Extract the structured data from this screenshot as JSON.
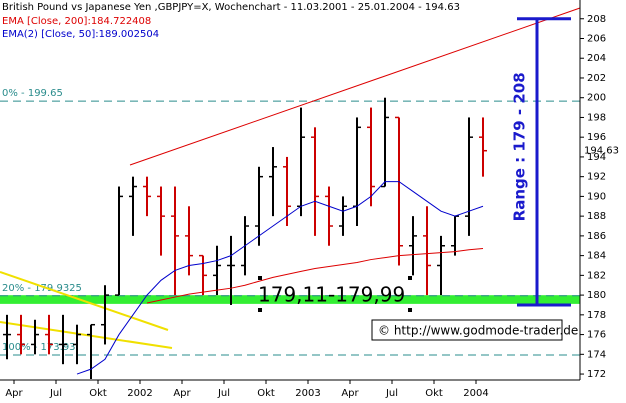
{
  "chart_data": {
    "type": "ohlc",
    "title": "British Pound vs Japanese Yen ,GBPJPY=X, Wochenchart - 11.03.2001 - 25.01.2004 - 194.63",
    "categories": [
      null,
      "Apr",
      null,
      null,
      "Jul",
      null,
      null,
      "Okt",
      null,
      null,
      "2002",
      null,
      null,
      "Apr",
      null,
      null,
      "Jul",
      null,
      null,
      "Okt",
      null,
      null,
      "2003",
      null,
      null,
      "Apr",
      null,
      null,
      "Jul",
      null,
      null,
      "Okt",
      null,
      null,
      "2004"
    ],
    "high": [
      178,
      178,
      177.5,
      178,
      178,
      177,
      177,
      181,
      191,
      192,
      192,
      191,
      191,
      189,
      184,
      185,
      186,
      188,
      193,
      195,
      194,
      199,
      197,
      191,
      190,
      198,
      199,
      200,
      198,
      188,
      189,
      186,
      188,
      198,
      198
    ],
    "low": [
      173.5,
      174,
      174,
      174,
      173,
      173,
      171.5,
      175,
      180,
      186,
      188,
      184,
      180,
      182,
      180,
      180,
      179,
      182,
      185,
      188,
      187,
      188,
      186,
      185,
      186,
      187,
      189,
      191,
      183,
      182,
      180,
      180,
      184,
      186,
      192
    ],
    "open": [
      176,
      176,
      175,
      176,
      175,
      175,
      176,
      177,
      180,
      190,
      191,
      190,
      188,
      186,
      184,
      182,
      183,
      183,
      187,
      192,
      193,
      189,
      196,
      190,
      187,
      189,
      197,
      191,
      198,
      185,
      186,
      183,
      185,
      188,
      196
    ],
    "close": [
      176,
      175,
      176,
      175,
      175,
      176,
      177,
      180,
      190,
      191,
      190,
      188,
      186,
      184,
      182,
      183,
      183,
      187,
      192,
      193,
      189,
      196,
      190,
      187,
      189,
      197,
      191,
      198,
      185,
      186,
      183,
      185,
      188,
      196,
      194.63
    ],
    "up_color": "#000000",
    "down_color": "#cc0000",
    "series": [
      {
        "name": "EMA [Close, 200]:184.722408",
        "color": "#dd0000",
        "values": [
          null,
          null,
          null,
          null,
          null,
          null,
          null,
          null,
          null,
          null,
          179.2,
          179.5,
          179.8,
          180.1,
          180.3,
          180.5,
          180.7,
          181,
          181.4,
          181.8,
          182.1,
          182.4,
          182.7,
          182.9,
          183.1,
          183.3,
          183.6,
          183.8,
          184,
          184.1,
          184.2,
          184.3,
          184.4,
          184.6,
          184.72
        ]
      },
      {
        "name": "EMA(2) [Close, 50]:189.002504",
        "color": "#0000cc",
        "values": [
          null,
          null,
          null,
          null,
          null,
          172,
          172.5,
          173.5,
          176,
          178,
          180,
          181.5,
          182.5,
          183,
          183.2,
          183.5,
          184,
          185,
          186,
          187,
          188,
          189,
          189.5,
          189,
          188.5,
          189,
          190,
          191.5,
          191.5,
          190.5,
          189.5,
          188.5,
          188,
          188.5,
          189
        ]
      }
    ],
    "ylim": [
      171.6,
      209.9
    ],
    "yticks": [
      172,
      174,
      176,
      178,
      180,
      182,
      184,
      186,
      188,
      190,
      192,
      194,
      196,
      198,
      200,
      202,
      204,
      206,
      208
    ],
    "last": 194.63,
    "levels": [
      {
        "label": "0% - 199.65",
        "value": 199.65
      },
      {
        "label": "20% - 179.9325",
        "value": 179.9325
      },
      {
        "label": "100% - 173.93",
        "value": 173.93
      }
    ],
    "band": {
      "low": 179.11,
      "high": 179.99,
      "label": "179,11-179,99"
    },
    "range": {
      "low": 179,
      "high": 208,
      "label": "Range : 179 - 208"
    },
    "source": "© http://www.godmode-trader.de"
  }
}
